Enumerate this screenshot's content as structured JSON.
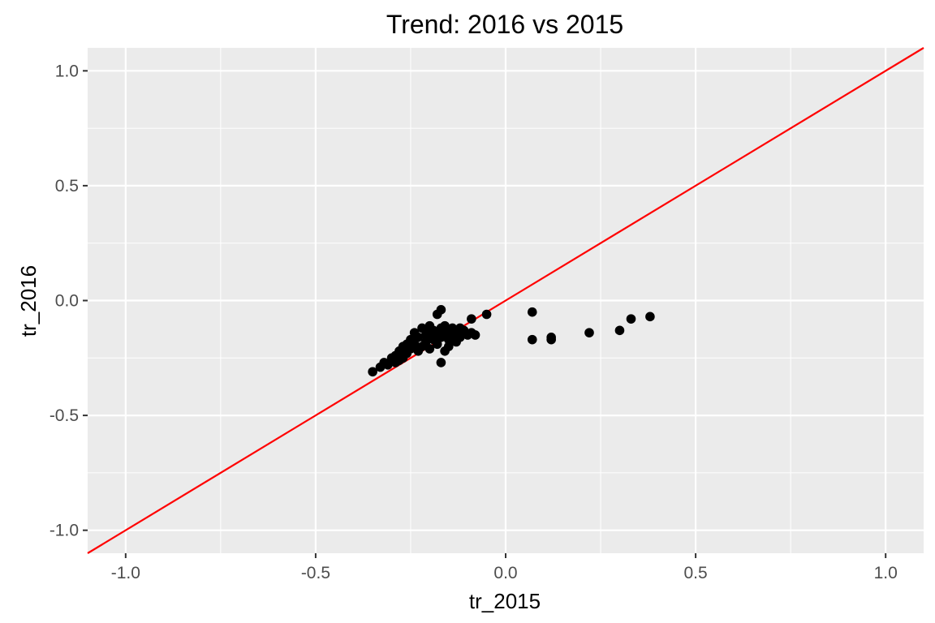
{
  "chart_data": {
    "type": "scatter",
    "title": "Trend: 2016 vs 2015",
    "xlabel": "tr_2015",
    "ylabel": "tr_2016",
    "xlim": [
      -1.1,
      1.1
    ],
    "ylim": [
      -1.1,
      1.1
    ],
    "x_ticks": [
      -1.0,
      -0.5,
      0.0,
      0.5,
      1.0
    ],
    "y_ticks": [
      -1.0,
      -0.5,
      0.0,
      0.5,
      1.0
    ],
    "x_tick_labels": [
      "-1.0",
      "-0.5",
      "0.0",
      "0.5",
      "1.0"
    ],
    "y_tick_labels": [
      "-1.0",
      "-0.5",
      "0.0",
      "0.5",
      "1.0"
    ],
    "grid": true,
    "reference_line": {
      "slope": 1,
      "intercept": 0,
      "color": "#ff0000"
    },
    "point_color": "#000000",
    "panel_background": "#ebebeb",
    "points": [
      [
        -0.35,
        -0.31
      ],
      [
        -0.33,
        -0.29
      ],
      [
        -0.32,
        -0.27
      ],
      [
        -0.31,
        -0.28
      ],
      [
        -0.3,
        -0.25
      ],
      [
        -0.29,
        -0.27
      ],
      [
        -0.29,
        -0.24
      ],
      [
        -0.28,
        -0.26
      ],
      [
        -0.28,
        -0.22
      ],
      [
        -0.27,
        -0.25
      ],
      [
        -0.27,
        -0.2
      ],
      [
        -0.26,
        -0.23
      ],
      [
        -0.26,
        -0.19
      ],
      [
        -0.25,
        -0.21
      ],
      [
        -0.25,
        -0.17
      ],
      [
        -0.24,
        -0.19
      ],
      [
        -0.24,
        -0.14
      ],
      [
        -0.23,
        -0.22
      ],
      [
        -0.23,
        -0.16
      ],
      [
        -0.22,
        -0.12
      ],
      [
        -0.22,
        -0.2
      ],
      [
        -0.21,
        -0.15
      ],
      [
        -0.21,
        -0.18
      ],
      [
        -0.2,
        -0.14
      ],
      [
        -0.2,
        -0.11
      ],
      [
        -0.2,
        -0.21
      ],
      [
        -0.19,
        -0.13
      ],
      [
        -0.19,
        -0.17
      ],
      [
        -0.18,
        -0.06
      ],
      [
        -0.18,
        -0.15
      ],
      [
        -0.18,
        -0.19
      ],
      [
        -0.17,
        -0.04
      ],
      [
        -0.17,
        -0.12
      ],
      [
        -0.17,
        -0.27
      ],
      [
        -0.17,
        -0.16
      ],
      [
        -0.16,
        -0.14
      ],
      [
        -0.16,
        -0.22
      ],
      [
        -0.16,
        -0.11
      ],
      [
        -0.15,
        -0.17
      ],
      [
        -0.15,
        -0.13
      ],
      [
        -0.15,
        -0.2
      ],
      [
        -0.14,
        -0.12
      ],
      [
        -0.14,
        -0.15
      ],
      [
        -0.13,
        -0.18
      ],
      [
        -0.13,
        -0.14
      ],
      [
        -0.12,
        -0.12
      ],
      [
        -0.12,
        -0.16
      ],
      [
        -0.11,
        -0.13
      ],
      [
        -0.1,
        -0.15
      ],
      [
        -0.09,
        -0.14
      ],
      [
        -0.09,
        -0.08
      ],
      [
        -0.08,
        -0.15
      ],
      [
        -0.05,
        -0.06
      ],
      [
        0.07,
        -0.05
      ],
      [
        0.07,
        -0.17
      ],
      [
        0.12,
        -0.16
      ],
      [
        0.12,
        -0.17
      ],
      [
        0.22,
        -0.14
      ],
      [
        0.3,
        -0.13
      ],
      [
        0.33,
        -0.08
      ],
      [
        0.38,
        -0.07
      ]
    ]
  }
}
